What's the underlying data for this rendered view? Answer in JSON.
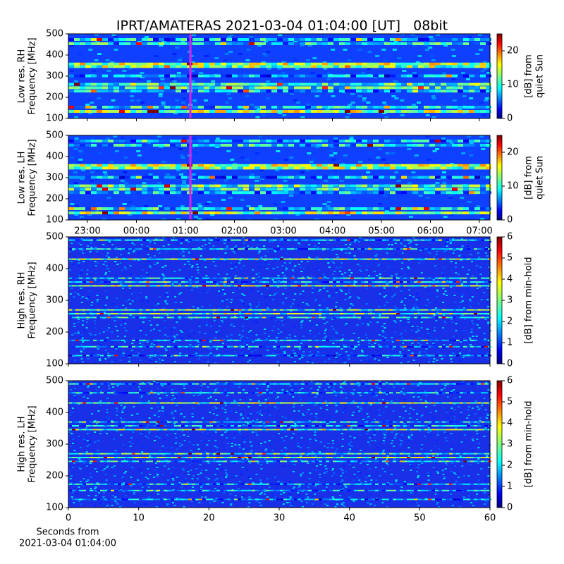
{
  "title": "IPRT/AMATERAS 2021-03-04 01:04:00 [UT]   08bit",
  "chart_data": [
    {
      "type": "heatmap",
      "ylabel": [
        "Low res. RH",
        "Frequency [MHz]"
      ],
      "ylim": [
        100,
        500
      ],
      "yticks": [
        100,
        200,
        300,
        400,
        500
      ],
      "colorbar": {
        "label": [
          "[dB] from",
          "quiet Sun"
        ],
        "lim": [
          0,
          25
        ],
        "ticks": [
          0,
          10,
          20
        ]
      }
    },
    {
      "type": "heatmap",
      "ylabel": [
        "Low res. LH",
        "Frequency [MHz]"
      ],
      "ylim": [
        100,
        500
      ],
      "yticks": [
        100,
        200,
        300,
        400,
        500
      ],
      "xticks": [
        "23:00",
        "00:00",
        "01:00",
        "02:00",
        "03:00",
        "04:00",
        "05:00",
        "06:00",
        "07:00"
      ],
      "colorbar": {
        "label": [
          "[dB] from",
          "quiet Sun"
        ],
        "lim": [
          0,
          25
        ],
        "ticks": [
          0,
          10,
          20
        ]
      }
    },
    {
      "type": "heatmap",
      "ylabel": [
        "High res. RH",
        "Frequency [MHz]"
      ],
      "ylim": [
        100,
        500
      ],
      "yticks": [
        100,
        200,
        300,
        400,
        500
      ],
      "colorbar": {
        "label": [
          "[dB] from min-hold"
        ],
        "lim": [
          0,
          6
        ],
        "ticks": [
          0,
          1,
          2,
          3,
          4,
          5,
          6
        ]
      }
    },
    {
      "type": "heatmap",
      "ylabel": [
        "High res. LH",
        "Frequency [MHz]"
      ],
      "ylim": [
        100,
        500
      ],
      "yticks": [
        100,
        200,
        300,
        400,
        500
      ],
      "xlim": [
        0,
        60
      ],
      "xticks": [
        0,
        10,
        20,
        30,
        40,
        50,
        60
      ],
      "xlabel": [
        "Seconds from",
        "2021-03-04 01:04:00"
      ],
      "colorbar": {
        "label": [
          "[dB] from min-hold"
        ],
        "lim": [
          0,
          6
        ],
        "ticks": [
          0,
          1,
          2,
          3,
          4,
          5,
          6
        ]
      }
    }
  ]
}
